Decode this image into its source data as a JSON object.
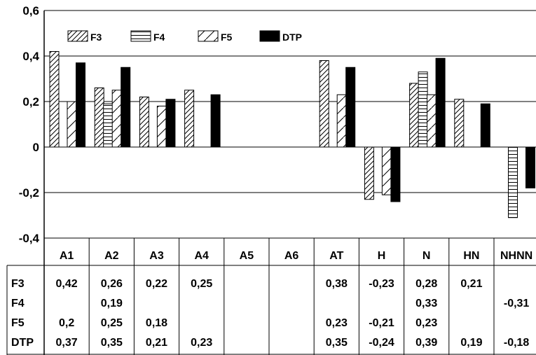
{
  "chart_data": {
    "type": "bar",
    "categories": [
      "A1",
      "A2",
      "A3",
      "A4",
      "A5",
      "A6",
      "AT",
      "H",
      "N",
      "HN",
      "NHNN"
    ],
    "ylim": [
      -0.4,
      0.6
    ],
    "yticks": [
      "0,6",
      "0,4",
      "0,2",
      "0",
      "-0,2",
      "-0,4"
    ],
    "grid": true,
    "legend_position": "top-left",
    "series": [
      {
        "name": "F3",
        "pattern": "hatch-diagonal",
        "values": [
          0.42,
          0.26,
          0.22,
          0.25,
          null,
          null,
          0.38,
          -0.23,
          0.28,
          0.21,
          null
        ],
        "labels": [
          "0,42",
          "0,26",
          "0,22",
          "0,25",
          "",
          "",
          "0,38",
          "-0,23",
          "0,28",
          "0,21",
          ""
        ]
      },
      {
        "name": "F4",
        "pattern": "hatch-horizontal",
        "values": [
          null,
          0.19,
          null,
          null,
          null,
          null,
          null,
          null,
          0.33,
          null,
          -0.31
        ],
        "labels": [
          "",
          "0,19",
          "",
          "",
          "",
          "",
          "",
          "",
          "0,33",
          "",
          "-0,31"
        ]
      },
      {
        "name": "F5",
        "pattern": "hatch-diagonal-sparse",
        "values": [
          0.2,
          0.25,
          0.18,
          null,
          null,
          null,
          0.23,
          -0.21,
          0.23,
          null,
          null
        ],
        "labels": [
          "0,2",
          "0,25",
          "0,18",
          "",
          "",
          "",
          "0,23",
          "-0,21",
          "0,23",
          "",
          ""
        ]
      },
      {
        "name": "DTP",
        "pattern": "solid",
        "values": [
          0.37,
          0.35,
          0.21,
          0.23,
          null,
          null,
          0.35,
          -0.24,
          0.39,
          0.19,
          -0.18
        ],
        "labels": [
          "0,37",
          "0,35",
          "0,21",
          "0,23",
          "",
          "",
          "0,35",
          "-0,24",
          "0,39",
          "0,19",
          "-0,18"
        ]
      }
    ]
  }
}
